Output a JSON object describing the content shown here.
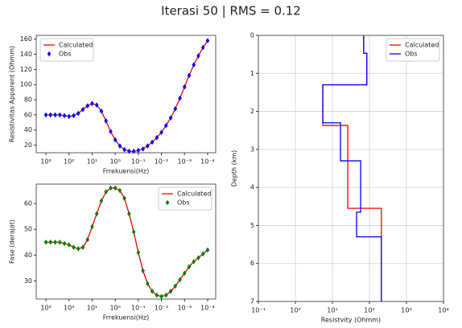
{
  "title": "Iterasi 50 | RMS = 0.12",
  "chart_data": [
    {
      "type": "line",
      "xlabel": "Frrekuensi(Hz)",
      "ylabel": "Resistivitas Apparent (Ohmm)",
      "xscale": "log",
      "xlim": [
        2630,
        4.47e-05
      ],
      "ylim": [
        10,
        165
      ],
      "xticks": [
        {
          "value": 1000,
          "label": "10³"
        },
        {
          "value": 100,
          "label": "10²"
        },
        {
          "value": 10,
          "label": "10¹"
        },
        {
          "value": 1,
          "label": "10⁰"
        },
        {
          "value": 0.1,
          "label": "10⁻¹"
        },
        {
          "value": 0.01,
          "label": "10⁻²"
        },
        {
          "value": 0.001,
          "label": "10⁻³"
        },
        {
          "value": 0.0001,
          "label": "10⁻⁴"
        }
      ],
      "yticks": [
        20,
        40,
        60,
        80,
        100,
        120,
        140,
        160
      ],
      "grid": false,
      "legend": "upper left",
      "x": [
        1000,
        631,
        398,
        251,
        158,
        100,
        63.1,
        39.8,
        25.1,
        15.8,
        10,
        6.31,
        3.98,
        2.51,
        1.58,
        1,
        0.631,
        0.398,
        0.251,
        0.158,
        0.1,
        0.0631,
        0.0398,
        0.0251,
        0.0158,
        0.01,
        0.00631,
        0.00398,
        0.00251,
        0.00158,
        0.001,
        0.000631,
        0.000398,
        0.000251,
        0.000158,
        0.0001
      ],
      "series": [
        {
          "name": "Calculated",
          "color": "#ff0000",
          "style": "line",
          "values": [
            60,
            60,
            60,
            60,
            59,
            58,
            59,
            62,
            67,
            72,
            75,
            73,
            65,
            52,
            38,
            27,
            19,
            14,
            12,
            12,
            13,
            15,
            19,
            24,
            30,
            37,
            46,
            56,
            68,
            82,
            97,
            112,
            126,
            138,
            149,
            158
          ]
        },
        {
          "name": "Obs",
          "color": "#0000ff",
          "style": "diamond",
          "values": [
            60,
            60,
            60,
            60,
            59,
            58,
            59,
            62,
            67,
            72,
            75,
            73,
            65,
            52,
            38,
            27,
            19,
            14,
            12,
            12,
            13,
            15,
            19,
            24,
            30,
            37,
            46,
            56,
            68,
            82,
            97,
            112,
            126,
            138,
            149,
            158
          ]
        }
      ]
    },
    {
      "type": "line",
      "xlabel": "Frrekuensi(Hz)",
      "ylabel": "Fase (derajat)",
      "xscale": "log",
      "xlim": [
        2630,
        4.47e-05
      ],
      "ylim": [
        23,
        67.5
      ],
      "xticks": [
        {
          "value": 1000,
          "label": "10³"
        },
        {
          "value": 100,
          "label": "10²"
        },
        {
          "value": 10,
          "label": "10¹"
        },
        {
          "value": 1,
          "label": "10⁰"
        },
        {
          "value": 0.1,
          "label": "10⁻¹"
        },
        {
          "value": 0.01,
          "label": "10⁻²"
        },
        {
          "value": 0.001,
          "label": "10⁻³"
        },
        {
          "value": 0.0001,
          "label": "10⁻⁴"
        }
      ],
      "yticks": [
        30,
        40,
        50,
        60
      ],
      "grid": false,
      "legend": "upper right",
      "x": [
        1000,
        631,
        398,
        251,
        158,
        100,
        63.1,
        39.8,
        25.1,
        15.8,
        10,
        6.31,
        3.98,
        2.51,
        1.58,
        1,
        0.631,
        0.398,
        0.251,
        0.158,
        0.1,
        0.0631,
        0.0398,
        0.0251,
        0.0158,
        0.01,
        0.00631,
        0.00398,
        0.00251,
        0.00158,
        0.001,
        0.000631,
        0.000398,
        0.000251,
        0.000158,
        0.0001
      ],
      "series": [
        {
          "name": "Calculated",
          "color": "#ff0000",
          "style": "line",
          "values": [
            45,
            45,
            45,
            45,
            44.5,
            44,
            43,
            42.5,
            43,
            46,
            51,
            56,
            61,
            64.5,
            66,
            66,
            65,
            62,
            56,
            49,
            41,
            34,
            29,
            26,
            24.5,
            24,
            24.5,
            26,
            28,
            30.5,
            33,
            35.5,
            37.5,
            39,
            40.5,
            42
          ]
        },
        {
          "name": "Obs",
          "color": "#008000",
          "style": "diamond",
          "values": [
            45,
            45,
            45,
            45,
            44.5,
            44,
            43,
            42.5,
            43,
            46,
            51,
            56,
            61,
            64.5,
            66,
            66,
            65,
            62,
            56,
            49,
            41,
            34,
            29,
            26,
            24.5,
            24,
            24.5,
            26,
            28,
            30.5,
            33,
            35.5,
            37.5,
            39,
            40.5,
            42
          ]
        }
      ]
    },
    {
      "type": "line",
      "xlabel": "Resistvity (Ohmm)",
      "ylabel": "Depth (km)",
      "xscale": "log",
      "xlim": [
        0.1,
        10000
      ],
      "ylim": [
        7,
        0
      ],
      "xticks": [
        {
          "value": 0.1,
          "label": "10⁻¹"
        },
        {
          "value": 1,
          "label": "10⁰"
        },
        {
          "value": 10,
          "label": "10¹"
        },
        {
          "value": 100,
          "label": "10²"
        },
        {
          "value": 1000,
          "label": "10³"
        },
        {
          "value": 10000,
          "label": "10⁴"
        }
      ],
      "yticks": [
        0,
        1,
        2,
        3,
        4,
        5,
        6,
        7
      ],
      "grid": true,
      "legend": "upper right",
      "series": [
        {
          "name": "Calculated",
          "color": "#ff0000",
          "style": "line",
          "x": [
            70,
            70,
            85,
            85,
            5.5,
            5.5,
            26,
            26,
            210,
            210
          ],
          "values": [
            0,
            0.47,
            0.47,
            1.3,
            1.3,
            2.37,
            2.37,
            4.55,
            4.55,
            7
          ]
        },
        {
          "name": "Obs",
          "color": "#0000ff",
          "style": "line",
          "x": [
            70,
            70,
            85,
            85,
            5.5,
            5.5,
            16.5,
            16.5,
            58,
            58,
            45,
            45,
            210,
            210
          ],
          "values": [
            0,
            0.47,
            0.47,
            1.3,
            1.3,
            2.3,
            2.3,
            3.3,
            3.3,
            4.65,
            4.65,
            5.3,
            5.3,
            7
          ]
        }
      ]
    }
  ]
}
